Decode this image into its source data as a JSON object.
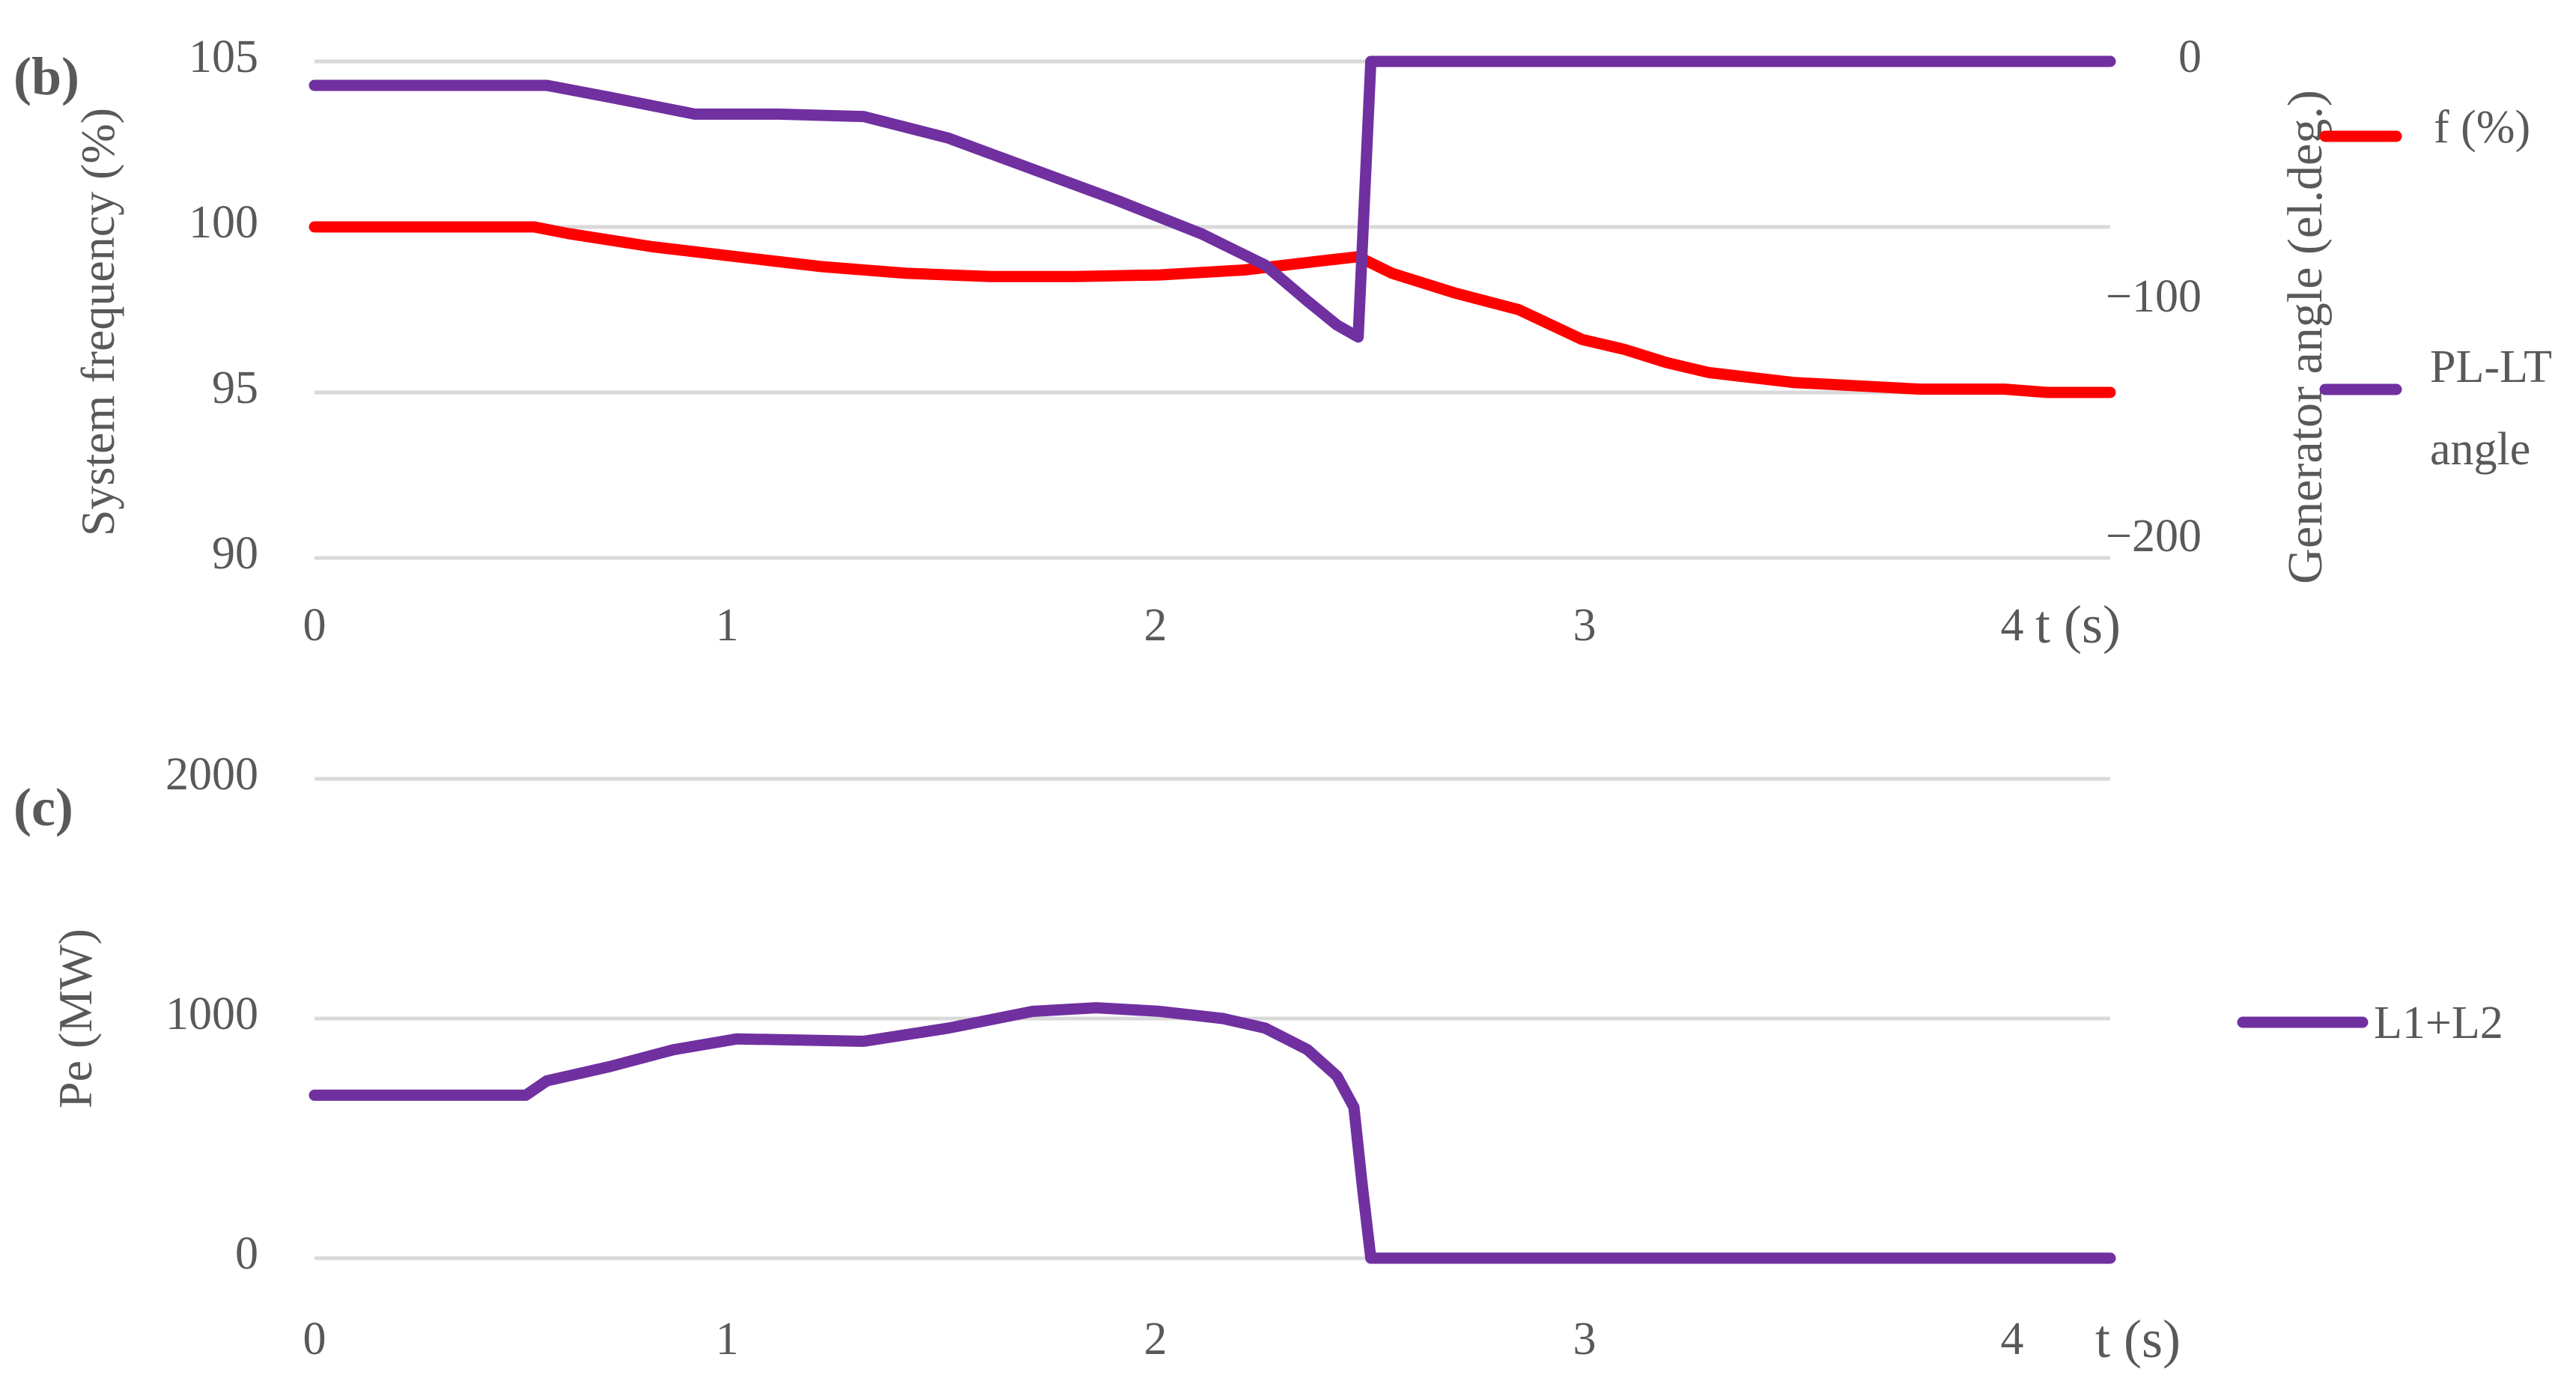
{
  "chart_data": [
    {
      "type": "line",
      "panel_label": "(b)",
      "xlabel": "t (s)",
      "ylabel": "System frequency (%)",
      "y2label": "Generator angle (el.deg.)",
      "xlim": [
        0,
        4.25
      ],
      "xticks": [
        0,
        1,
        2,
        3,
        4
      ],
      "ylim": [
        90,
        105
      ],
      "yticks": [
        90,
        95,
        100,
        105
      ],
      "y2lim": [
        -200,
        0
      ],
      "y2ticks": [
        0,
        -100,
        -200
      ],
      "y2tick_labels": [
        "0",
        "−100",
        "−200"
      ],
      "grid": true,
      "legend_position": "right",
      "series": [
        {
          "name": "f (%)",
          "color": "#ff0000",
          "axis": "left",
          "x": [
            0,
            0.52,
            0.6,
            0.8,
            1.0,
            1.2,
            1.4,
            1.6,
            1.8,
            2.0,
            2.2,
            2.4,
            2.47,
            2.55,
            2.7,
            2.85,
            3.0,
            3.1,
            3.2,
            3.3,
            3.5,
            3.8,
            4.0,
            4.1,
            4.25
          ],
          "y": [
            100,
            100,
            99.8,
            99.4,
            99.1,
            98.8,
            98.6,
            98.5,
            98.5,
            98.55,
            98.7,
            99.0,
            99.1,
            98.6,
            98.0,
            97.5,
            96.6,
            96.3,
            95.9,
            95.6,
            95.3,
            95.1,
            95.1,
            95.0,
            95.0
          ]
        },
        {
          "name": "PL-LT angle",
          "color": "#7030a0",
          "axis": "right",
          "x": [
            0,
            0.55,
            0.7,
            0.9,
            1.1,
            1.3,
            1.5,
            1.7,
            1.9,
            2.1,
            2.25,
            2.35,
            2.42,
            2.47,
            2.5,
            4.25
          ],
          "y": [
            -10,
            -10,
            -15,
            -22,
            -22,
            -23,
            -32,
            -45,
            -58,
            -72,
            -85,
            -100,
            -110,
            -115,
            0,
            0
          ]
        }
      ]
    },
    {
      "type": "line",
      "panel_label": "(c)",
      "xlabel": "t (s)",
      "ylabel": "Pe (MW)",
      "xlim": [
        0,
        4.25
      ],
      "xticks": [
        0,
        1,
        2,
        3,
        4
      ],
      "ylim": [
        0,
        2000
      ],
      "yticks": [
        0,
        1000,
        2000
      ],
      "grid": true,
      "legend_position": "right",
      "series": [
        {
          "name": "L1+L2",
          "color": "#7030a0",
          "x": [
            0,
            0.5,
            0.55,
            0.7,
            0.85,
            1.0,
            1.15,
            1.3,
            1.5,
            1.7,
            1.85,
            2.0,
            2.15,
            2.25,
            2.35,
            2.42,
            2.46,
            2.48,
            2.5,
            4.25
          ],
          "y": [
            680,
            680,
            740,
            800,
            870,
            915,
            910,
            905,
            960,
            1030,
            1045,
            1030,
            1000,
            960,
            870,
            760,
            630,
            300,
            0,
            0
          ]
        }
      ]
    }
  ]
}
